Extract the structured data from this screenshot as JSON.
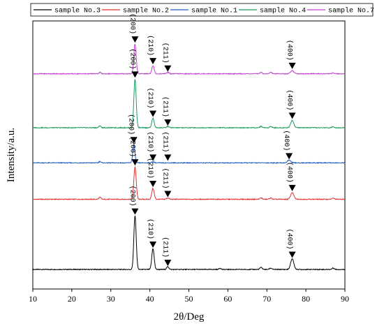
{
  "chart_data": {
    "type": "line",
    "title": "",
    "xlabel": "2θ/Deg",
    "ylabel": "Intensity/a.u.",
    "xlim": [
      10,
      90
    ],
    "x_ticks": [
      10,
      20,
      30,
      40,
      50,
      60,
      70,
      80,
      90
    ],
    "grid": false,
    "legend_position": "top",
    "series": [
      {
        "name": "sample No.3",
        "color": "#000000",
        "baseline": 0.0,
        "peaks": [
          {
            "x": 36.2,
            "h": 80,
            "w": 0.3
          },
          {
            "x": 40.8,
            "h": 31,
            "w": 0.3
          },
          {
            "x": 44.6,
            "h": 4,
            "w": 0.3
          },
          {
            "x": 58.0,
            "h": 2,
            "w": 0.25
          },
          {
            "x": 68.5,
            "h": 3,
            "w": 0.3
          },
          {
            "x": 71.0,
            "h": 2,
            "w": 0.3
          },
          {
            "x": 76.5,
            "h": 16,
            "w": 0.4
          },
          {
            "x": 87.0,
            "h": 2,
            "w": 0.3
          }
        ]
      },
      {
        "name": "sample No.2",
        "color": "#e23030",
        "baseline": 104.0,
        "peaks": [
          {
            "x": 36.2,
            "h": 48,
            "w": 0.3
          },
          {
            "x": 40.8,
            "h": 16,
            "w": 0.3
          },
          {
            "x": 44.6,
            "h": 2,
            "w": 0.3
          },
          {
            "x": 27.2,
            "h": 3,
            "w": 0.25
          },
          {
            "x": 68.5,
            "h": 2,
            "w": 0.3
          },
          {
            "x": 71.0,
            "h": 2,
            "w": 0.3
          },
          {
            "x": 76.5,
            "h": 10,
            "w": 0.4
          },
          {
            "x": 87.0,
            "h": 1.5,
            "w": 0.3
          }
        ]
      },
      {
        "name": "sample No.1",
        "color": "#1f5fbf",
        "baseline": 158.0,
        "peaks": [
          {
            "x": 35.9,
            "h": 27,
            "w": 0.28
          },
          {
            "x": 40.8,
            "h": 1.5,
            "w": 0.3
          },
          {
            "x": 27.2,
            "h": 2,
            "w": 0.25
          },
          {
            "x": 75.7,
            "h": 4,
            "w": 0.4
          }
        ]
      },
      {
        "name": "sample No.4",
        "color": "#1a9a60",
        "baseline": 210.0,
        "peaks": [
          {
            "x": 36.2,
            "h": 72,
            "w": 0.3
          },
          {
            "x": 40.8,
            "h": 14,
            "w": 0.3
          },
          {
            "x": 44.6,
            "h": 2,
            "w": 0.3
          },
          {
            "x": 27.2,
            "h": 3,
            "w": 0.25
          },
          {
            "x": 68.5,
            "h": 2,
            "w": 0.3
          },
          {
            "x": 71.0,
            "h": 2,
            "w": 0.3
          },
          {
            "x": 76.5,
            "h": 11,
            "w": 0.4
          },
          {
            "x": 87.0,
            "h": 1.5,
            "w": 0.3
          }
        ]
      },
      {
        "name": "sample No.7",
        "color": "#c040d0",
        "baseline": 290.0,
        "peaks": [
          {
            "x": 36.2,
            "h": 44,
            "w": 0.3
          },
          {
            "x": 40.8,
            "h": 12,
            "w": 0.3
          },
          {
            "x": 44.6,
            "h": 2,
            "w": 0.3
          },
          {
            "x": 27.2,
            "h": 2,
            "w": 0.25
          },
          {
            "x": 68.5,
            "h": 2,
            "w": 0.3
          },
          {
            "x": 71.0,
            "h": 2,
            "w": 0.3
          },
          {
            "x": 76.5,
            "h": 5,
            "w": 0.4
          },
          {
            "x": 87.0,
            "h": 1.5,
            "w": 0.3
          }
        ]
      }
    ],
    "peak_annotations": [
      {
        "series": 4,
        "labels": [
          {
            "text": "(200)",
            "x": 36.2,
            "level": 335
          },
          {
            "text": "(210)",
            "x": 40.8,
            "level": 303
          },
          {
            "text": "(211)",
            "x": 44.6,
            "level": 292
          },
          {
            "text": "(400)",
            "x": 76.5,
            "level": 296
          }
        ]
      },
      {
        "series": 3,
        "labels": [
          {
            "text": "(200)",
            "x": 36.2,
            "level": 283
          },
          {
            "text": "(210)",
            "x": 40.8,
            "level": 225
          },
          {
            "text": "(211)",
            "x": 44.6,
            "level": 212
          },
          {
            "text": "(400)",
            "x": 76.5,
            "level": 222
          }
        ]
      },
      {
        "series": 2,
        "labels": [
          {
            "text": "(200)",
            "x": 35.9,
            "level": 186
          },
          {
            "text": "(210)",
            "x": 40.8,
            "level": 160
          },
          {
            "text": "(211)",
            "x": 44.6,
            "level": 160
          },
          {
            "text": "(400)",
            "x": 75.7,
            "level": 162
          }
        ]
      },
      {
        "series": 1,
        "labels": [
          {
            "text": "(200)",
            "x": 36.2,
            "level": 153
          },
          {
            "text": "(210)",
            "x": 40.8,
            "level": 121
          },
          {
            "text": "(211)",
            "x": 44.6,
            "level": 106
          },
          {
            "text": "(400)",
            "x": 76.5,
            "level": 115
          }
        ]
      },
      {
        "series": 0,
        "labels": [
          {
            "text": "(200)",
            "x": 36.2,
            "level": 80
          },
          {
            "text": "(210)",
            "x": 40.8,
            "level": 31
          },
          {
            "text": "(211)",
            "x": 44.6,
            "level": 4
          },
          {
            "text": "(400)",
            "x": 76.5,
            "level": 16
          }
        ]
      }
    ]
  }
}
